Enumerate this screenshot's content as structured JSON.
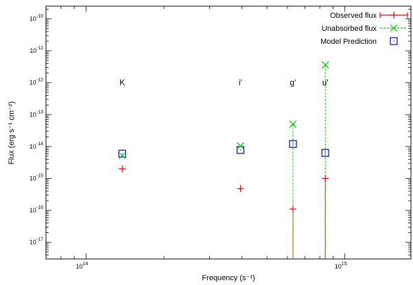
{
  "chart_data": {
    "type": "scatter",
    "xlabel": "Frequency (s⁻¹)",
    "ylabel": "Flux (erg s⁻¹ cm⁻²)",
    "x_scale": "log",
    "y_scale": "log",
    "xlim": [
      70000000000000.0,
      1800000000000000.0
    ],
    "ylim": [
      3e-18,
      2.5e-10
    ],
    "x_ticks": [
      {
        "value": 100000000000000.0,
        "base": "10",
        "exp": "14"
      },
      {
        "value": 1000000000000000.0,
        "base": "10",
        "exp": "15"
      }
    ],
    "y_ticks": [
      {
        "value": 1e-17,
        "base": "10",
        "exp": "-17"
      },
      {
        "value": 1e-16,
        "base": "10",
        "exp": "-16"
      },
      {
        "value": 1e-15,
        "base": "10",
        "exp": "-15"
      },
      {
        "value": 1e-14,
        "base": "10",
        "exp": "-14"
      },
      {
        "value": 1e-13,
        "base": "10",
        "exp": "-13"
      },
      {
        "value": 1e-12,
        "base": "10",
        "exp": "-12"
      },
      {
        "value": 1e-11,
        "base": "10",
        "exp": "-11"
      },
      {
        "value": 1e-10,
        "base": "10",
        "exp": "-10"
      }
    ],
    "band_label_y": 1e-12,
    "bands": [
      {
        "label": "K",
        "x": 138000000000000.0
      },
      {
        "label": "i'",
        "x": 395000000000000.0
      },
      {
        "label": "g'",
        "x": 630000000000000.0
      },
      {
        "label": "u'",
        "x": 840000000000000.0
      }
    ],
    "legend_position": "top-right",
    "grid": false,
    "series": [
      {
        "name": "Observed flux",
        "color": "#e8000b",
        "marker": "plus",
        "points": [
          {
            "x": 138000000000000.0,
            "y": 2e-15
          },
          {
            "x": 395000000000000.0,
            "y": 4.8e-16
          },
          {
            "x": 630000000000000.0,
            "y": 1.1e-16,
            "err_down": true
          },
          {
            "x": 840000000000000.0,
            "y": 1e-15,
            "err_down": true
          }
        ]
      },
      {
        "name": "Unabsorbed flux",
        "color": "#00c800",
        "marker": "cross",
        "points": [
          {
            "x": 138000000000000.0,
            "y": 5.2e-15
          },
          {
            "x": 395000000000000.0,
            "y": 1.05e-14
          },
          {
            "x": 630000000000000.0,
            "y": 5e-14,
            "err_down": true
          },
          {
            "x": 840000000000000.0,
            "y": 3.6e-12,
            "err_down": true
          }
        ]
      },
      {
        "name": "Model Prediction",
        "color": "#0000cc",
        "marker": "square",
        "points": [
          {
            "x": 138000000000000.0,
            "y": 6e-15
          },
          {
            "x": 395000000000000.0,
            "y": 7.8e-15
          },
          {
            "x": 630000000000000.0,
            "y": 1.2e-14
          },
          {
            "x": 840000000000000.0,
            "y": 6.3e-15
          }
        ]
      }
    ]
  }
}
